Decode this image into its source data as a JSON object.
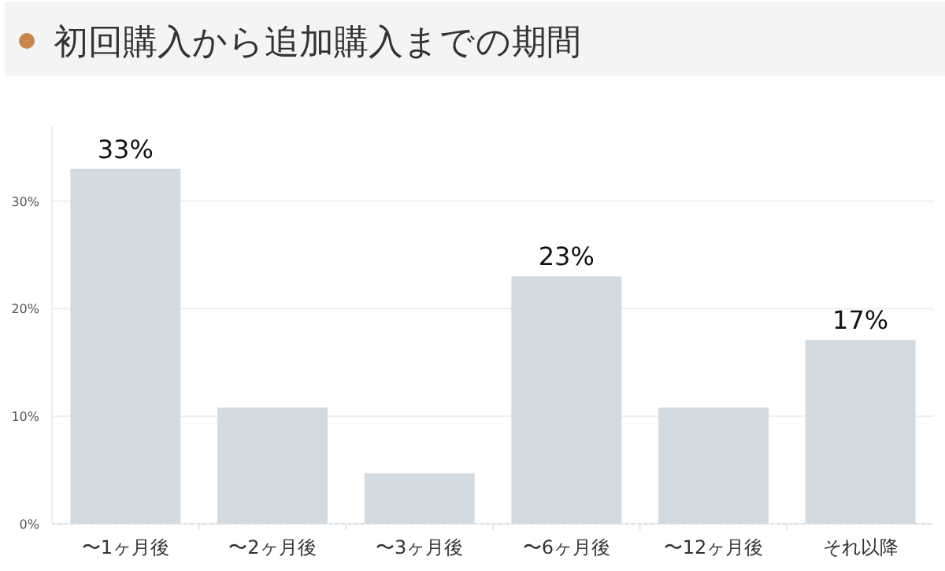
{
  "chart_data": {
    "type": "bar",
    "title": "初回購入から追加購入までの期間",
    "categories": [
      "〜1ヶ月後",
      "〜2ヶ月後",
      "〜3ヶ月後",
      "〜6ヶ月後",
      "〜12ヶ月後",
      "それ以降"
    ],
    "values": [
      33,
      10.8,
      4.7,
      23,
      10.8,
      17.1
    ],
    "value_labels": [
      "33%",
      null,
      null,
      "23%",
      null,
      "17%"
    ],
    "color": "#d3dbe2",
    "ylim": [
      0,
      37
    ],
    "yticks": [
      {
        "value": 0,
        "label": "0%"
      },
      {
        "value": 10,
        "label": "10%"
      },
      {
        "value": 20,
        "label": "20%"
      },
      {
        "value": 30,
        "label": "30%"
      }
    ],
    "grid": "y"
  }
}
